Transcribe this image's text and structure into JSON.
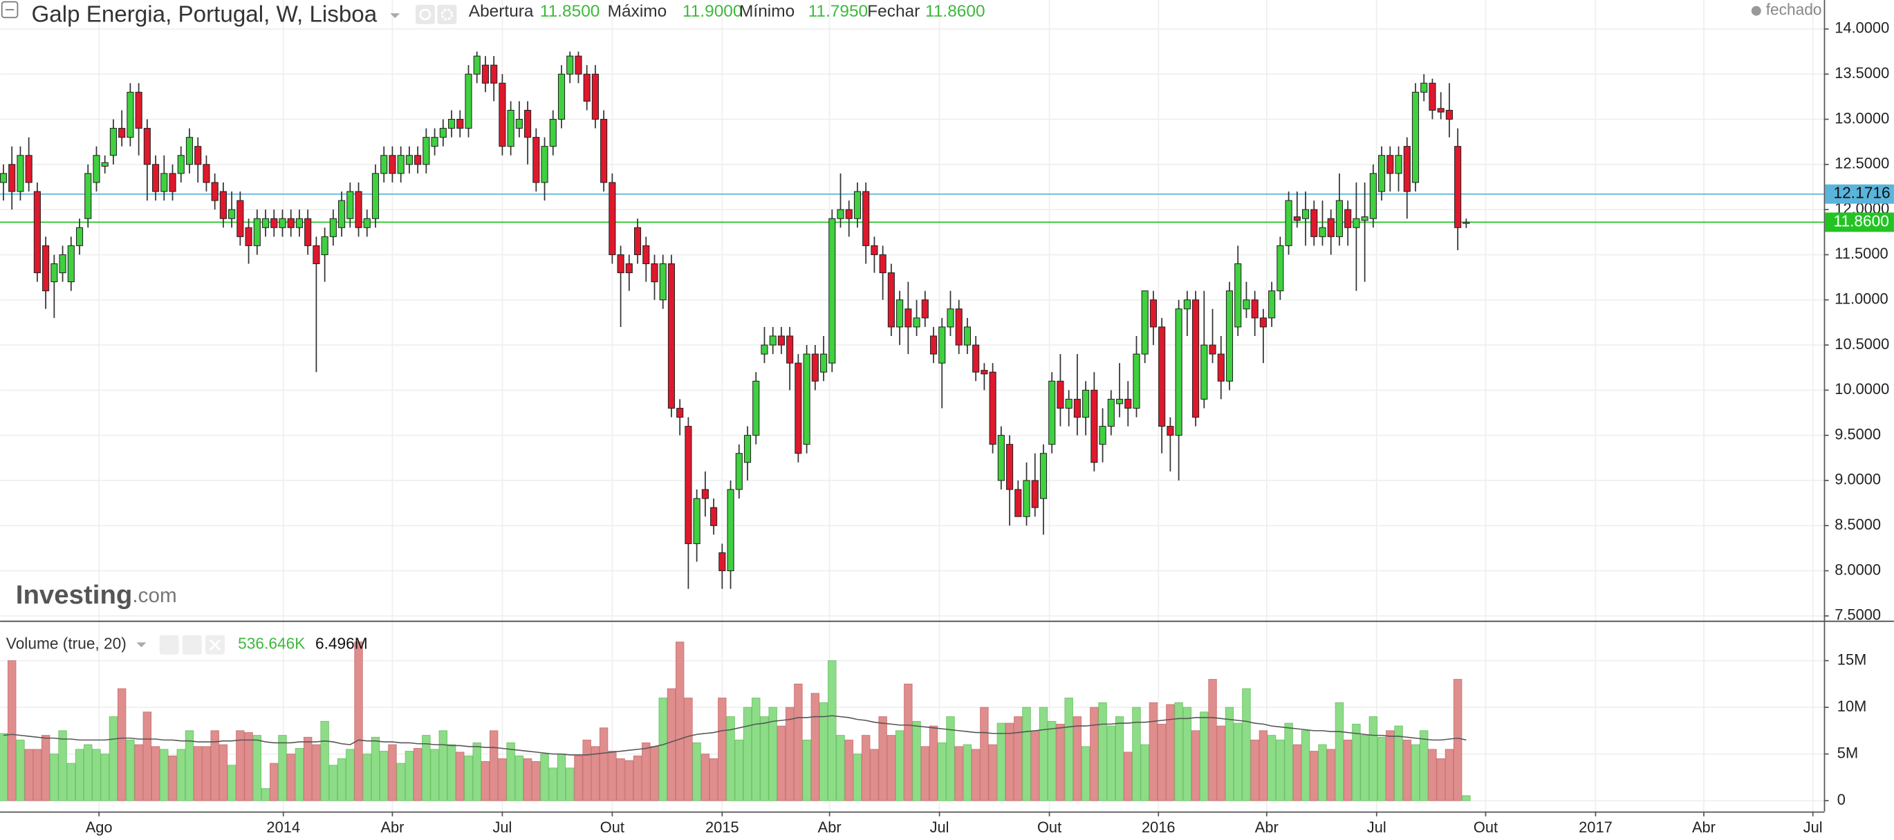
{
  "chart_data": {
    "type": "candlestick",
    "title": "Galp Energia, Portugal, W, Lisboa",
    "status": "fechado",
    "ohlc_legend": [
      {
        "name": "Abertura",
        "label": "11.8500"
      },
      {
        "name": "Máximo",
        "label": "11.9000"
      },
      {
        "name": "Mínimo",
        "label": "11.7950"
      },
      {
        "name": "Fechar",
        "label": "11.8600"
      }
    ],
    "legend_value_color": "#3cb93c",
    "up_color": "#3fd13f",
    "down_color": "#e0182c",
    "open": [
      12.3,
      12.5,
      12.2,
      12.6,
      12.2,
      11.6,
      11.2,
      11.3,
      11.2,
      11.6,
      11.9,
      12.3,
      12.48,
      12.6,
      12.9,
      12.8,
      13.3,
      12.9,
      12.5,
      12.2,
      12.4,
      12.4,
      12.5,
      12.7,
      12.5,
      12.3,
      12.2,
      11.9,
      12.1,
      11.8,
      11.6,
      11.8,
      11.9,
      11.8,
      11.9,
      11.8,
      11.9,
      11.6,
      11.5,
      11.7,
      11.8,
      11.9,
      12.2,
      11.8,
      11.9,
      12.4,
      12.6,
      12.4,
      12.5,
      12.6,
      12.5,
      12.7,
      12.8,
      12.9,
      13.0,
      12.9,
      13.5,
      13.6,
      13.6,
      13.4,
      12.7,
      12.9,
      13.1,
      12.8,
      12.3,
      12.7,
      13.0,
      13.5,
      13.7,
      13.5,
      13.5,
      13.0,
      12.3,
      11.5,
      11.4,
      11.8,
      11.6,
      11.4,
      11.0,
      11.4,
      9.8,
      9.6,
      8.3,
      8.9,
      8.7,
      8.2,
      8.0,
      8.9,
      9.2,
      9.5,
      10.4,
      10.5,
      10.6,
      10.6,
      10.3,
      9.4,
      10.4,
      10.2,
      10.3,
      11.9,
      12.0,
      11.9,
      12.2,
      11.6,
      11.5,
      11.3,
      10.7,
      10.9,
      10.7,
      11.0,
      10.6,
      10.3,
      10.7,
      10.9,
      10.5,
      10.5,
      10.22,
      10.2,
      9.0,
      9.4,
      8.9,
      8.6,
      9.0,
      8.8,
      9.4,
      10.1,
      9.8,
      9.9,
      9.7,
      10.0,
      9.4,
      9.6,
      9.85,
      9.9,
      9.8,
      10.4,
      11.0,
      10.7,
      9.6,
      9.5,
      10.9,
      11.0,
      9.9,
      10.5,
      10.4,
      10.1,
      10.7,
      10.9,
      11.0,
      10.8,
      10.8,
      11.1,
      11.6,
      11.92,
      11.9,
      12.0,
      11.7,
      11.9,
      11.7,
      12.0,
      11.8,
      11.88,
      11.9,
      12.2,
      12.6,
      12.4,
      12.7,
      12.3,
      13.3,
      13.4,
      13.12,
      13.1,
      12.7,
      11.85
    ],
    "high": [
      12.5,
      12.7,
      12.7,
      12.8,
      12.3,
      11.7,
      11.5,
      11.6,
      11.7,
      11.9,
      12.5,
      12.7,
      12.6,
      13.0,
      13.1,
      13.4,
      13.4,
      13.0,
      12.6,
      12.6,
      12.5,
      12.7,
      12.9,
      12.8,
      12.6,
      12.4,
      12.3,
      12.2,
      12.2,
      11.9,
      12.0,
      12.0,
      12.0,
      12.0,
      12.0,
      12.0,
      12.0,
      11.7,
      11.8,
      12.0,
      12.2,
      12.3,
      12.3,
      12.0,
      12.5,
      12.7,
      12.7,
      12.7,
      12.7,
      12.7,
      12.9,
      12.9,
      13.0,
      13.1,
      13.1,
      13.6,
      13.75,
      13.7,
      13.7,
      13.5,
      13.2,
      13.2,
      13.2,
      12.9,
      12.8,
      13.1,
      13.6,
      13.75,
      13.75,
      13.6,
      13.6,
      13.1,
      12.4,
      11.6,
      11.5,
      11.9,
      11.7,
      11.5,
      11.5,
      11.5,
      9.9,
      9.7,
      8.9,
      9.1,
      8.8,
      8.3,
      9.0,
      9.4,
      9.6,
      10.2,
      10.7,
      10.7,
      10.7,
      10.7,
      10.4,
      10.5,
      10.5,
      10.6,
      12.0,
      12.4,
      12.1,
      12.3,
      12.3,
      11.7,
      11.6,
      11.4,
      11.1,
      11.2,
      11.0,
      11.1,
      10.7,
      10.8,
      11.1,
      11.0,
      10.8,
      10.6,
      10.3,
      10.3,
      9.6,
      9.5,
      9.0,
      9.2,
      9.3,
      9.4,
      10.2,
      10.4,
      10.0,
      10.4,
      10.1,
      10.2,
      9.8,
      10.0,
      10.3,
      10.1,
      10.6,
      11.1,
      11.1,
      10.8,
      9.7,
      11.0,
      11.1,
      11.1,
      11.1,
      10.9,
      10.6,
      11.2,
      11.6,
      11.2,
      11.1,
      10.9,
      11.2,
      11.7,
      12.2,
      12.2,
      12.2,
      12.1,
      12.1,
      12.0,
      12.4,
      12.1,
      12.3,
      12.3,
      12.5,
      12.7,
      12.7,
      12.7,
      12.8,
      13.4,
      13.5,
      13.45,
      13.3,
      13.4,
      12.9,
      11.9
    ],
    "low": [
      12.1,
      12.0,
      12.1,
      12.2,
      11.2,
      10.9,
      10.8,
      11.2,
      11.1,
      11.5,
      11.8,
      12.2,
      12.4,
      12.5,
      12.7,
      12.7,
      12.6,
      12.1,
      12.1,
      12.1,
      12.1,
      12.3,
      12.4,
      12.3,
      12.2,
      12.0,
      11.8,
      11.8,
      11.6,
      11.4,
      11.5,
      11.7,
      11.7,
      11.7,
      11.7,
      11.7,
      11.5,
      10.2,
      11.2,
      11.6,
      11.7,
      11.8,
      11.7,
      11.7,
      11.8,
      12.3,
      12.3,
      12.3,
      12.4,
      12.4,
      12.4,
      12.6,
      12.7,
      12.8,
      12.8,
      12.8,
      13.4,
      13.3,
      13.2,
      12.6,
      12.6,
      12.8,
      12.5,
      12.2,
      12.1,
      12.6,
      12.9,
      13.4,
      13.4,
      13.1,
      12.9,
      12.2,
      11.4,
      10.7,
      11.1,
      11.4,
      11.2,
      11.0,
      10.9,
      9.7,
      9.5,
      7.8,
      8.1,
      8.6,
      8.4,
      7.8,
      7.8,
      8.8,
      9.0,
      9.4,
      10.3,
      10.4,
      10.4,
      10.0,
      9.2,
      9.3,
      10.0,
      10.1,
      10.2,
      11.8,
      11.7,
      11.8,
      11.4,
      11.3,
      11.0,
      10.6,
      10.5,
      10.4,
      10.6,
      10.7,
      10.3,
      9.8,
      10.6,
      10.4,
      10.4,
      10.1,
      10.0,
      9.3,
      8.9,
      8.5,
      8.6,
      8.5,
      8.6,
      8.4,
      9.3,
      9.6,
      9.6,
      9.5,
      9.5,
      9.1,
      9.2,
      9.5,
      9.7,
      9.6,
      9.7,
      10.3,
      10.5,
      9.3,
      9.1,
      9.0,
      10.6,
      9.6,
      9.8,
      10.3,
      9.9,
      10.0,
      10.6,
      10.8,
      10.6,
      10.3,
      10.7,
      11.0,
      11.5,
      11.8,
      11.6,
      11.6,
      11.6,
      11.5,
      11.6,
      11.6,
      11.1,
      11.2,
      11.8,
      12.1,
      12.2,
      12.2,
      11.9,
      12.2,
      13.2,
      13.0,
      13.0,
      12.8,
      11.55,
      11.795
    ],
    "close": [
      12.4,
      12.2,
      12.6,
      12.3,
      11.3,
      11.1,
      11.4,
      11.5,
      11.6,
      11.8,
      12.4,
      12.6,
      12.52,
      12.9,
      12.8,
      13.3,
      12.9,
      12.5,
      12.2,
      12.4,
      12.2,
      12.6,
      12.8,
      12.5,
      12.3,
      12.1,
      11.9,
      12.0,
      11.7,
      11.6,
      11.9,
      11.9,
      11.8,
      11.9,
      11.8,
      11.9,
      11.6,
      11.4,
      11.7,
      11.9,
      12.1,
      12.2,
      11.8,
      11.9,
      12.4,
      12.6,
      12.4,
      12.6,
      12.6,
      12.5,
      12.8,
      12.8,
      12.9,
      13.0,
      12.9,
      13.5,
      13.7,
      13.4,
      13.4,
      12.7,
      13.1,
      13.0,
      12.8,
      12.3,
      12.7,
      13.0,
      13.5,
      13.7,
      13.5,
      13.2,
      13.0,
      12.3,
      11.5,
      11.3,
      11.3,
      11.5,
      11.4,
      11.2,
      11.4,
      9.8,
      9.7,
      8.3,
      8.8,
      8.8,
      8.5,
      8.0,
      8.9,
      9.3,
      9.5,
      10.1,
      10.5,
      10.6,
      10.5,
      10.3,
      9.3,
      10.4,
      10.1,
      10.4,
      11.9,
      12.0,
      11.9,
      12.2,
      11.6,
      11.5,
      11.3,
      10.7,
      11.0,
      10.7,
      10.8,
      10.8,
      10.4,
      10.7,
      10.9,
      10.5,
      10.7,
      10.2,
      10.18,
      9.4,
      9.5,
      8.9,
      8.6,
      9.0,
      8.7,
      9.3,
      10.1,
      9.8,
      9.9,
      9.7,
      10.0,
      9.2,
      9.6,
      9.9,
      9.9,
      9.8,
      10.4,
      11.1,
      10.7,
      9.6,
      9.5,
      10.9,
      11.0,
      9.7,
      10.5,
      10.4,
      10.1,
      11.1,
      11.4,
      11.0,
      10.8,
      10.7,
      11.1,
      11.6,
      12.1,
      11.88,
      12.0,
      11.7,
      11.8,
      11.7,
      12.1,
      11.8,
      11.9,
      11.92,
      12.4,
      12.6,
      12.4,
      12.6,
      12.2,
      13.3,
      13.4,
      13.1,
      13.08,
      13.0,
      11.8,
      11.86
    ],
    "xlim": [
      -0.4,
      215.3
    ],
    "xticks": [
      {
        "value": 11.3,
        "label": "Ago"
      },
      {
        "value": 33.1,
        "label": "2014"
      },
      {
        "value": 46,
        "label": "Abr"
      },
      {
        "value": 59,
        "label": "Jul"
      },
      {
        "value": 72,
        "label": "Out"
      },
      {
        "value": 85,
        "label": "2015"
      },
      {
        "value": 97.7,
        "label": "Abr"
      },
      {
        "value": 110.7,
        "label": "Jul"
      },
      {
        "value": 123.7,
        "label": "Out"
      },
      {
        "value": 136.6,
        "label": "2016"
      },
      {
        "value": 149.4,
        "label": "Abr"
      },
      {
        "value": 162.4,
        "label": "Jul"
      },
      {
        "value": 175.3,
        "label": "Out"
      },
      {
        "value": 188.3,
        "label": "2017"
      },
      {
        "value": 201.1,
        "label": "Abr"
      },
      {
        "value": 214,
        "label": "Jul"
      }
    ],
    "ylim": [
      7.447,
      14.321
    ],
    "yticks": [
      {
        "value": 7.5,
        "label": "7.5000"
      },
      {
        "value": 8,
        "label": "8.0000"
      },
      {
        "value": 8.5,
        "label": "8.5000"
      },
      {
        "value": 9,
        "label": "9.0000"
      },
      {
        "value": 9.5,
        "label": "9.5000"
      },
      {
        "value": 10,
        "label": "10.0000"
      },
      {
        "value": 10.5,
        "label": "10.5000"
      },
      {
        "value": 11,
        "label": "11.0000"
      },
      {
        "value": 11.5,
        "label": "11.5000"
      },
      {
        "value": 12,
        "label": "12.0000"
      },
      {
        "value": 12.5,
        "label": "12.5000"
      },
      {
        "value": 13,
        "label": "13.0000"
      },
      {
        "value": 13.5,
        "label": "13.5000"
      },
      {
        "value": 14,
        "label": "14.0000"
      }
    ],
    "grid": true,
    "price_lines": [
      {
        "value": 12.1716,
        "label": "12.1716",
        "color": "#5ab4dc"
      },
      {
        "value": 11.86,
        "label": "11.8600",
        "color": "#22c322"
      }
    ],
    "volume": {
      "title": "Volume (true, 20)",
      "legend_values": [
        {
          "label": "536.646K",
          "color": "#3cb93c"
        },
        {
          "label": "6.496M",
          "color": "#111111"
        }
      ],
      "up_color": "#8ddc87",
      "down_color": "#df8d8d",
      "ma_color": "#555555",
      "values": [
        7.2,
        15,
        6.5,
        5.5,
        5.5,
        7,
        5,
        7.5,
        4,
        5.5,
        6,
        5.5,
        5,
        9,
        12,
        6.5,
        6,
        9.5,
        5.8,
        5.5,
        4.8,
        5.5,
        7.5,
        5.8,
        5.8,
        7.5,
        6,
        3.8,
        7.5,
        7.3,
        7,
        1.3,
        4,
        7,
        5,
        5.6,
        6.8,
        6,
        8.5,
        3.8,
        4.5,
        5.5,
        17,
        5,
        6.8,
        5.3,
        6,
        4,
        5.3,
        5.6,
        7,
        5.5,
        7.5,
        6,
        5.2,
        4.8,
        6.2,
        4.2,
        7.5,
        4.5,
        6.2,
        4.8,
        4.5,
        4.2,
        5,
        3.5,
        5,
        3.5,
        4.8,
        6.5,
        5.8,
        7.8,
        5.3,
        4.5,
        4.3,
        4.8,
        6.2,
        5.8,
        11,
        12,
        17,
        11,
        6.2,
        5,
        4.5,
        11,
        9,
        6.5,
        10,
        11,
        9,
        10,
        8,
        10,
        12.5,
        6.5,
        11.5,
        10.5,
        15,
        7,
        6.5,
        5,
        7,
        5.5,
        9,
        7,
        7.5,
        12.5,
        8.5,
        5.8,
        8,
        6.2,
        9,
        5.8,
        6,
        5.5,
        10,
        6,
        8.3,
        8.3,
        9,
        10,
        7.5,
        10,
        8.5,
        8.2,
        11,
        9,
        5.8,
        10,
        10.5,
        8,
        9,
        5.2,
        10,
        6,
        10.5,
        8.2,
        10.3,
        10.5,
        10,
        7.5,
        9.5,
        13,
        8,
        10,
        8.3,
        12,
        6.5,
        7.5,
        7,
        6.5,
        8.3,
        6,
        7.5,
        5.3,
        6,
        5.5,
        10.5,
        6.5,
        8.2,
        7,
        9,
        6.8,
        7.5,
        8,
        6.5,
        6,
        7.5,
        5.5,
        4.5,
        5.5,
        13,
        0.536646
      ],
      "ma": [
        7.0,
        7.1,
        7.0,
        6.9,
        6.8,
        6.7,
        6.7,
        6.6,
        6.6,
        6.5,
        6.5,
        6.5,
        6.5,
        6.6,
        6.7,
        6.7,
        6.6,
        6.6,
        6.6,
        6.5,
        6.5,
        6.4,
        6.4,
        6.3,
        6.3,
        6.3,
        6.4,
        6.4,
        6.5,
        6.5,
        6.5,
        6.3,
        6.2,
        6.2,
        6.2,
        6.3,
        6.3,
        6.3,
        6.4,
        6.3,
        6.1,
        6.0,
        6.5,
        6.4,
        6.4,
        6.3,
        6.3,
        6.2,
        6.2,
        6.1,
        6.1,
        6.0,
        6.0,
        5.9,
        5.9,
        5.8,
        5.8,
        5.7,
        5.7,
        5.6,
        5.5,
        5.4,
        5.3,
        5.2,
        5.1,
        5.0,
        5.0,
        4.9,
        4.9,
        4.9,
        5.0,
        5.1,
        5.2,
        5.3,
        5.4,
        5.5,
        5.6,
        5.8,
        6.0,
        6.3,
        6.6,
        6.9,
        7.1,
        7.2,
        7.3,
        7.5,
        7.6,
        7.8,
        8.0,
        8.2,
        8.3,
        8.5,
        8.6,
        8.7,
        8.9,
        8.9,
        9.0,
        9.0,
        9.1,
        9.0,
        8.9,
        8.7,
        8.6,
        8.4,
        8.3,
        8.2,
        8.1,
        8.1,
        8.0,
        7.9,
        7.8,
        7.7,
        7.6,
        7.5,
        7.4,
        7.3,
        7.3,
        7.2,
        7.2,
        7.2,
        7.3,
        7.4,
        7.5,
        7.6,
        7.7,
        7.8,
        7.9,
        8.0,
        8.0,
        8.1,
        8.2,
        8.2,
        8.3,
        8.3,
        8.4,
        8.4,
        8.5,
        8.6,
        8.7,
        8.8,
        8.8,
        8.9,
        8.9,
        8.9,
        8.8,
        8.7,
        8.6,
        8.5,
        8.3,
        8.2,
        8.0,
        7.9,
        7.8,
        7.7,
        7.6,
        7.5,
        7.5,
        7.4,
        7.4,
        7.3,
        7.2,
        7.1,
        7.0,
        7.0,
        6.9,
        6.9,
        6.8,
        6.7,
        6.6,
        6.5,
        6.5,
        6.6,
        6.7,
        6.496
      ],
      "ylim": [
        -1.16,
        19.15
      ],
      "yticks": [
        0,
        {
          "value": 5,
          "label": "5M"
        },
        {
          "value": 10,
          "label": "10M"
        },
        {
          "value": 15,
          "label": "15M"
        }
      ]
    },
    "watermark": {
      "brand": "Investing",
      "domain": ".com"
    }
  }
}
